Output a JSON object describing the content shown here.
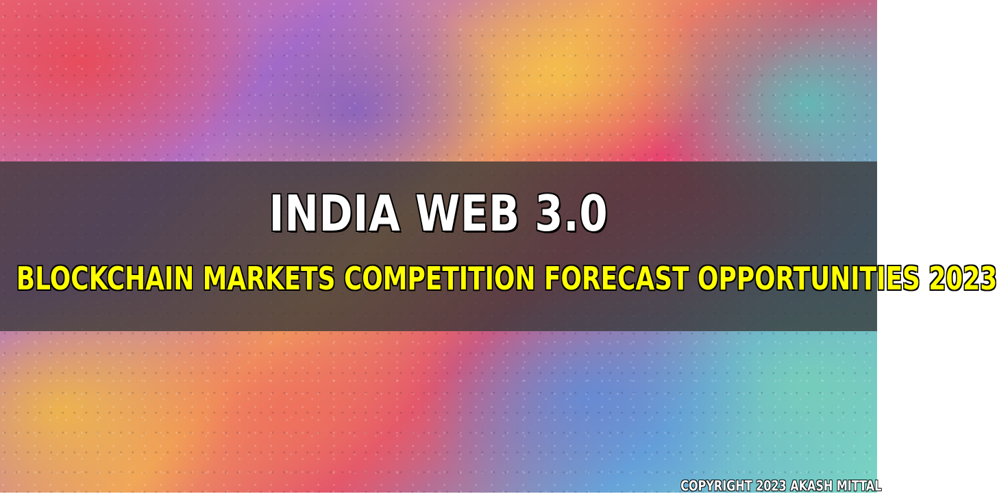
{
  "banner": {
    "title": "INDIA WEB 3.0",
    "subtitle": "BLOCKCHAIN MARKETS COMPETITION FORECAST OPPORTUNITIES 2023",
    "title_color": "#ffffff",
    "subtitle_color": "#ffff00",
    "band_color": "#373737"
  },
  "footer": {
    "copyright": "COPYRIGHT 2023 AKASH MITTAL"
  },
  "background": {
    "description_colors": [
      "#e86a7a",
      "#b070c8",
      "#f0a060",
      "#e05070",
      "#6aa8d8",
      "#7ad6c4"
    ]
  }
}
